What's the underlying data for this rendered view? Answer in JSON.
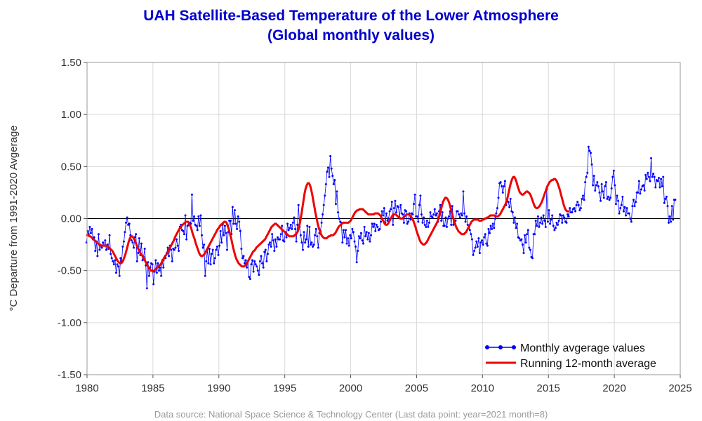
{
  "chart_data": {
    "type": "line",
    "title_lines": [
      "UAH Satellite-Based Temperature of the Lower Atmosphere",
      "(Global monthly values)"
    ],
    "xlabel": "",
    "ylabel": "°C Departure from 1991-2020 Avgerage",
    "xlim": [
      1980,
      2025
    ],
    "ylim": [
      -1.5,
      1.5
    ],
    "x_ticks": [
      1980,
      1985,
      1990,
      1995,
      2000,
      2005,
      2010,
      2015,
      2020,
      2025
    ],
    "x_tick_labels": [
      "1980",
      "1985",
      "1990",
      "1995",
      "2000",
      "2005",
      "2010",
      "2015",
      "2020",
      "2025"
    ],
    "y_ticks": [
      -1.5,
      -1.0,
      -0.5,
      0.0,
      0.5,
      1.0,
      1.5
    ],
    "y_tick_labels": [
      "-1.50",
      "-1.00",
      "-0.50",
      "0.00",
      "0.50",
      "1.00",
      "1.50"
    ],
    "grid": true,
    "zero_line": true,
    "legend_position": "bottom-right",
    "footer": "Data source: National Space Science & Technology Center (Last data point: year=2021 month=8)",
    "series": [
      {
        "name": "Monthly avgerage values",
        "color": "#0000ff",
        "marker": "dot",
        "x_start": 1979.958,
        "x_step": 0.0833333,
        "values": [
          -0.23,
          -0.12,
          -0.15,
          -0.08,
          -0.14,
          -0.1,
          -0.2,
          -0.18,
          -0.31,
          -0.22,
          -0.36,
          -0.15,
          -0.3,
          -0.26,
          -0.28,
          -0.23,
          -0.26,
          -0.21,
          -0.3,
          -0.25,
          -0.29,
          -0.16,
          -0.34,
          -0.38,
          -0.41,
          -0.44,
          -0.4,
          -0.52,
          -0.44,
          -0.46,
          -0.55,
          -0.38,
          -0.41,
          -0.27,
          -0.22,
          -0.13,
          -0.04,
          0.01,
          -0.06,
          -0.05,
          -0.16,
          -0.21,
          -0.23,
          -0.28,
          -0.18,
          -0.15,
          -0.41,
          -0.33,
          -0.19,
          -0.35,
          -0.24,
          -0.4,
          -0.37,
          -0.29,
          -0.45,
          -0.67,
          -0.42,
          -0.55,
          -0.47,
          -0.43,
          -0.44,
          -0.63,
          -0.51,
          -0.4,
          -0.52,
          -0.43,
          -0.5,
          -0.47,
          -0.55,
          -0.4,
          -0.47,
          -0.38,
          -0.38,
          -0.33,
          -0.28,
          -0.36,
          -0.26,
          -0.3,
          -0.41,
          -0.29,
          -0.3,
          -0.28,
          -0.2,
          -0.26,
          -0.31,
          -0.08,
          -0.06,
          -0.11,
          -0.12,
          -0.15,
          0.03,
          -0.2,
          -0.07,
          -0.06,
          -0.04,
          -0.05,
          0.23,
          -0.02,
          0.02,
          -0.06,
          -0.07,
          -0.11,
          0.02,
          -0.07,
          0.03,
          -0.16,
          -0.28,
          -0.25,
          -0.55,
          -0.41,
          -0.3,
          -0.43,
          -0.29,
          -0.44,
          -0.34,
          -0.3,
          -0.43,
          -0.38,
          -0.3,
          -0.27,
          -0.35,
          -0.26,
          -0.12,
          -0.23,
          -0.06,
          -0.16,
          -0.07,
          -0.14,
          -0.3,
          -0.13,
          -0.02,
          -0.02,
          -0.15,
          0.11,
          -0.05,
          0.08,
          -0.05,
          -0.1,
          0.02,
          -0.03,
          -0.12,
          -0.29,
          -0.38,
          -0.36,
          -0.43,
          -0.4,
          -0.47,
          -0.41,
          -0.56,
          -0.58,
          -0.44,
          -0.4,
          -0.51,
          -0.41,
          -0.44,
          -0.46,
          -0.5,
          -0.54,
          -0.41,
          -0.36,
          -0.43,
          -0.47,
          -0.32,
          -0.3,
          -0.41,
          -0.34,
          -0.25,
          -0.23,
          -0.27,
          -0.15,
          -0.21,
          -0.31,
          -0.2,
          -0.27,
          -0.18,
          -0.2,
          -0.2,
          -0.15,
          -0.07,
          -0.21,
          -0.22,
          -0.13,
          -0.18,
          -0.05,
          -0.11,
          -0.09,
          -0.06,
          -0.1,
          -0.04,
          0.01,
          -0.1,
          -0.22,
          -0.06,
          0.13,
          -0.08,
          -0.16,
          -0.23,
          -0.3,
          -0.13,
          -0.23,
          -0.2,
          -0.07,
          -0.27,
          -0.08,
          -0.25,
          -0.23,
          -0.27,
          -0.25,
          -0.16,
          -0.1,
          -0.17,
          -0.28,
          -0.14,
          -0.12,
          -0.04,
          0.04,
          0.13,
          0.22,
          0.33,
          0.45,
          0.49,
          0.4,
          0.6,
          0.48,
          0.41,
          0.33,
          0.37,
          0.14,
          0.26,
          0.06,
          0.0,
          -0.03,
          -0.04,
          -0.23,
          -0.11,
          -0.18,
          -0.11,
          -0.24,
          -0.19,
          -0.26,
          -0.16,
          -0.19,
          -0.1,
          -0.13,
          -0.22,
          -0.27,
          -0.42,
          -0.31,
          -0.17,
          -0.19,
          -0.14,
          -0.21,
          -0.24,
          -0.08,
          -0.17,
          -0.13,
          -0.2,
          -0.14,
          -0.22,
          -0.16,
          -0.05,
          -0.08,
          -0.05,
          -0.12,
          -0.06,
          -0.08,
          -0.11,
          -0.1,
          -0.03,
          0.07,
          0.03,
          0.1,
          -0.04,
          0.05,
          -0.02,
          0.0,
          0.07,
          0.09,
          0.16,
          -0.06,
          0.1,
          0.17,
          0.06,
          0.12,
          0.11,
          0.01,
          0.13,
          0.05,
          0.04,
          -0.04,
          0.08,
          0.07,
          -0.05,
          -0.03,
          0.05,
          -0.01,
          0.05,
          0.04,
          0.14,
          0.23,
          0.02,
          0.02,
          -0.03,
          0.13,
          0.22,
          0.04,
          -0.04,
          0.01,
          -0.06,
          -0.08,
          -0.02,
          -0.08,
          -0.04,
          0.06,
          0.02,
          0.01,
          0.04,
          0.09,
          0.03,
          0.05,
          -0.03,
          0.07,
          0.13,
          -0.02,
          0.06,
          -0.07,
          -0.07,
          0.01,
          -0.08,
          0.0,
          0.02,
          0.07,
          -0.06,
          0.12,
          -0.06,
          -0.04,
          -0.02,
          0.07,
          0.07,
          0.04,
          0.01,
          0.05,
          0.03,
          0.26,
          0.05,
          -0.03,
          0.02,
          -0.06,
          -0.09,
          -0.11,
          -0.15,
          -0.2,
          -0.35,
          -0.31,
          -0.28,
          -0.22,
          -0.27,
          -0.19,
          -0.33,
          -0.23,
          -0.21,
          -0.25,
          -0.18,
          -0.15,
          -0.24,
          -0.26,
          -0.1,
          -0.14,
          -0.07,
          -0.1,
          -0.05,
          -0.09,
          0.0,
          0.05,
          0.1,
          0.2,
          0.34,
          0.35,
          0.31,
          0.25,
          0.31,
          0.36,
          0.13,
          0.19,
          0.16,
          0.11,
          0.19,
          0.07,
          0.06,
          -0.04,
          0.01,
          -0.09,
          -0.05,
          -0.18,
          -0.19,
          -0.21,
          -0.2,
          -0.25,
          -0.33,
          -0.16,
          -0.23,
          -0.15,
          -0.11,
          -0.28,
          -0.3,
          -0.37,
          -0.38,
          -0.15,
          -0.15,
          -0.02,
          -0.07,
          0.02,
          -0.08,
          -0.04,
          0.01,
          -0.05,
          0.03,
          -0.02,
          -0.08,
          0.28,
          -0.03,
          0.08,
          -0.05,
          -0.01,
          0.03,
          -0.07,
          -0.11,
          -0.09,
          -0.04,
          -0.06,
          -0.02,
          0.04,
          0.03,
          -0.04,
          0.03,
          0.01,
          -0.03,
          -0.04,
          0.04,
          0.02,
          0.1,
          0.06,
          0.06,
          0.09,
          0.1,
          0.07,
          0.13,
          0.16,
          0.13,
          0.08,
          0.1,
          0.19,
          0.22,
          0.18,
          0.35,
          0.4,
          0.44,
          0.69,
          0.65,
          0.63,
          0.52,
          0.32,
          0.41,
          0.27,
          0.32,
          0.35,
          0.31,
          0.25,
          0.17,
          0.33,
          0.26,
          0.2,
          0.31,
          0.35,
          0.19,
          0.21,
          0.18,
          0.2,
          0.29,
          0.4,
          0.46,
          0.32,
          0.14,
          0.22,
          0.17,
          0.05,
          0.1,
          0.13,
          0.21,
          0.07,
          0.11,
          0.03,
          0.1,
          0.05,
          0.05,
          0.0,
          -0.03,
          0.12,
          0.18,
          0.12,
          0.16,
          0.25,
          0.25,
          0.36,
          0.24,
          0.28,
          0.31,
          0.32,
          0.27,
          0.42,
          0.38,
          0.44,
          0.4,
          0.36,
          0.58,
          0.4,
          0.43,
          0.4,
          0.3,
          0.37,
          0.36,
          0.39,
          0.3,
          0.38,
          0.31,
          0.4,
          0.15,
          0.19,
          0.21,
          0.12,
          -0.04,
          0.02,
          -0.03,
          0.12,
          -0.01,
          0.18,
          0.18
        ]
      },
      {
        "name": "Running 12-month average",
        "color": "#ee0000",
        "marker": "none",
        "x_start": 1980.0,
        "x_step": 0.0833333,
        "values": [
          -0.16,
          -0.16,
          -0.17,
          -0.17,
          -0.18,
          -0.19,
          -0.2,
          -0.21,
          -0.22,
          -0.23,
          -0.24,
          -0.25,
          -0.25,
          -0.26,
          -0.26,
          -0.26,
          -0.26,
          -0.26,
          -0.26,
          -0.27,
          -0.28,
          -0.29,
          -0.3,
          -0.31,
          -0.33,
          -0.35,
          -0.37,
          -0.39,
          -0.41,
          -0.42,
          -0.43,
          -0.43,
          -0.42,
          -0.4,
          -0.37,
          -0.34,
          -0.3,
          -0.26,
          -0.22,
          -0.19,
          -0.17,
          -0.17,
          -0.18,
          -0.2,
          -0.22,
          -0.25,
          -0.28,
          -0.3,
          -0.32,
          -0.34,
          -0.35,
          -0.37,
          -0.39,
          -0.41,
          -0.43,
          -0.45,
          -0.47,
          -0.48,
          -0.5,
          -0.5,
          -0.51,
          -0.5,
          -0.49,
          -0.48,
          -0.47,
          -0.46,
          -0.45,
          -0.44,
          -0.42,
          -0.4,
          -0.38,
          -0.36,
          -0.35,
          -0.33,
          -0.31,
          -0.29,
          -0.27,
          -0.25,
          -0.23,
          -0.21,
          -0.18,
          -0.16,
          -0.14,
          -0.12,
          -0.1,
          -0.09,
          -0.07,
          -0.06,
          -0.05,
          -0.04,
          -0.03,
          -0.03,
          -0.03,
          -0.05,
          -0.07,
          -0.1,
          -0.14,
          -0.17,
          -0.2,
          -0.24,
          -0.27,
          -0.3,
          -0.33,
          -0.35,
          -0.36,
          -0.36,
          -0.35,
          -0.34,
          -0.32,
          -0.3,
          -0.28,
          -0.26,
          -0.24,
          -0.22,
          -0.2,
          -0.18,
          -0.16,
          -0.14,
          -0.12,
          -0.1,
          -0.09,
          -0.07,
          -0.06,
          -0.05,
          -0.04,
          -0.03,
          -0.03,
          -0.04,
          -0.07,
          -0.1,
          -0.14,
          -0.18,
          -0.23,
          -0.28,
          -0.32,
          -0.36,
          -0.39,
          -0.41,
          -0.43,
          -0.44,
          -0.45,
          -0.46,
          -0.46,
          -0.46,
          -0.45,
          -0.44,
          -0.42,
          -0.4,
          -0.38,
          -0.36,
          -0.34,
          -0.32,
          -0.31,
          -0.3,
          -0.28,
          -0.27,
          -0.26,
          -0.25,
          -0.24,
          -0.23,
          -0.22,
          -0.21,
          -0.2,
          -0.18,
          -0.16,
          -0.14,
          -0.12,
          -0.1,
          -0.08,
          -0.07,
          -0.06,
          -0.05,
          -0.05,
          -0.06,
          -0.07,
          -0.08,
          -0.09,
          -0.1,
          -0.11,
          -0.12,
          -0.13,
          -0.14,
          -0.15,
          -0.16,
          -0.17,
          -0.17,
          -0.17,
          -0.17,
          -0.17,
          -0.16,
          -0.15,
          -0.14,
          -0.12,
          -0.08,
          -0.03,
          0.03,
          0.1,
          0.17,
          0.24,
          0.29,
          0.32,
          0.34,
          0.34,
          0.32,
          0.28,
          0.23,
          0.17,
          0.11,
          0.05,
          0.0,
          -0.05,
          -0.09,
          -0.12,
          -0.15,
          -0.17,
          -0.18,
          -0.19,
          -0.19,
          -0.19,
          -0.18,
          -0.17,
          -0.17,
          -0.16,
          -0.16,
          -0.16,
          -0.15,
          -0.14,
          -0.12,
          -0.1,
          -0.08,
          -0.07,
          -0.06,
          -0.05,
          -0.04,
          -0.04,
          -0.04,
          -0.04,
          -0.04,
          -0.04,
          -0.03,
          -0.02,
          0.0,
          0.02,
          0.04,
          0.06,
          0.07,
          0.08,
          0.08,
          0.09,
          0.09,
          0.09,
          0.09,
          0.08,
          0.07,
          0.06,
          0.05,
          0.04,
          0.04,
          0.04,
          0.04,
          0.04,
          0.04,
          0.05,
          0.05,
          0.05,
          0.05,
          0.04,
          0.03,
          0.01,
          -0.01,
          -0.03,
          -0.05,
          -0.06,
          -0.06,
          -0.05,
          -0.03,
          -0.01,
          0.01,
          0.03,
          0.04,
          0.04,
          0.04,
          0.03,
          0.02,
          0.01,
          0.0,
          0.0,
          0.0,
          0.01,
          0.02,
          0.03,
          0.04,
          0.04,
          0.04,
          0.03,
          0.02,
          0.0,
          -0.02,
          -0.05,
          -0.08,
          -0.12,
          -0.15,
          -0.18,
          -0.21,
          -0.23,
          -0.24,
          -0.25,
          -0.25,
          -0.24,
          -0.23,
          -0.21,
          -0.19,
          -0.17,
          -0.15,
          -0.13,
          -0.11,
          -0.09,
          -0.07,
          -0.05,
          -0.03,
          0.0,
          0.04,
          0.08,
          0.12,
          0.16,
          0.18,
          0.2,
          0.2,
          0.19,
          0.17,
          0.14,
          0.1,
          0.06,
          0.02,
          -0.02,
          -0.05,
          -0.08,
          -0.1,
          -0.12,
          -0.13,
          -0.14,
          -0.15,
          -0.15,
          -0.15,
          -0.14,
          -0.13,
          -0.11,
          -0.09,
          -0.07,
          -0.05,
          -0.03,
          -0.02,
          -0.01,
          -0.01,
          -0.01,
          -0.01,
          -0.01,
          -0.02,
          -0.02,
          -0.02,
          -0.01,
          -0.01,
          0.0,
          0.0,
          0.01,
          0.01,
          0.02,
          0.03,
          0.03,
          0.03,
          0.03,
          0.03,
          0.02,
          0.02,
          0.02,
          0.03,
          0.04,
          0.06,
          0.08,
          0.1,
          0.12,
          0.14,
          0.17,
          0.21,
          0.26,
          0.31,
          0.35,
          0.38,
          0.4,
          0.4,
          0.38,
          0.35,
          0.31,
          0.28,
          0.25,
          0.24,
          0.23,
          0.23,
          0.24,
          0.25,
          0.26,
          0.26,
          0.25,
          0.24,
          0.22,
          0.19,
          0.16,
          0.13,
          0.11,
          0.1,
          0.1,
          0.11,
          0.12,
          0.14,
          0.16,
          0.19,
          0.22,
          0.25,
          0.28,
          0.31,
          0.33,
          0.35,
          0.36,
          0.37,
          0.37,
          0.38,
          0.38,
          0.37,
          0.35,
          0.32,
          0.29,
          0.25,
          0.21,
          0.17,
          0.13,
          0.1,
          0.08,
          0.07,
          0.07
        ]
      }
    ]
  }
}
